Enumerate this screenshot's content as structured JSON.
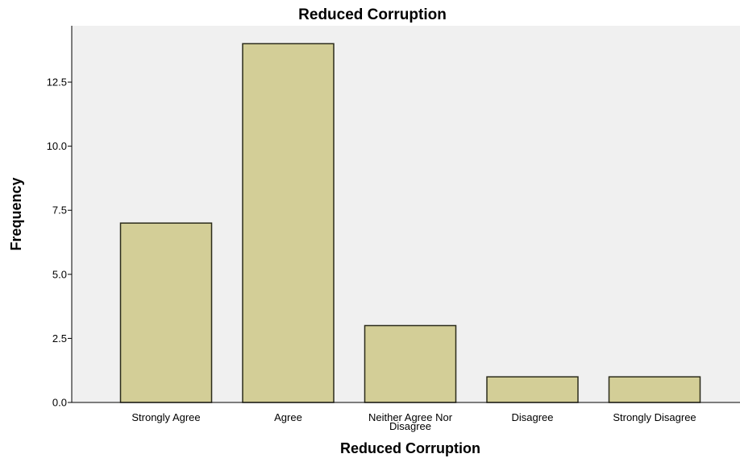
{
  "chart_data": {
    "type": "bar",
    "title": "Reduced Corruption",
    "xlabel": "Reduced Corruption",
    "ylabel": "Frequency",
    "categories": [
      "Strongly Agree",
      "Agree",
      "Neither Agree Nor Disagree",
      "Disagree",
      "Strongly Disagree"
    ],
    "category_label_lines": [
      [
        "Strongly Agree"
      ],
      [
        "Agree"
      ],
      [
        "Neither Agree Nor",
        "Disagree"
      ],
      [
        "Disagree"
      ],
      [
        "Strongly Disagree"
      ]
    ],
    "values": [
      7,
      14,
      3,
      1,
      1
    ],
    "ylim": [
      0,
      14.7
    ],
    "yticks": [
      0,
      2.5,
      5,
      7.5,
      10,
      12.5
    ],
    "ytick_labels": [
      "0.0",
      "2.5",
      "5.0",
      "7.5",
      "10.0",
      "12.5"
    ],
    "grid": false,
    "legend": "none",
    "colors": {
      "bar_fill": "#d3ce97",
      "bar_stroke": "#2b2b1a",
      "plot_bg": "#f0f0f0",
      "axis": "#000000"
    }
  }
}
